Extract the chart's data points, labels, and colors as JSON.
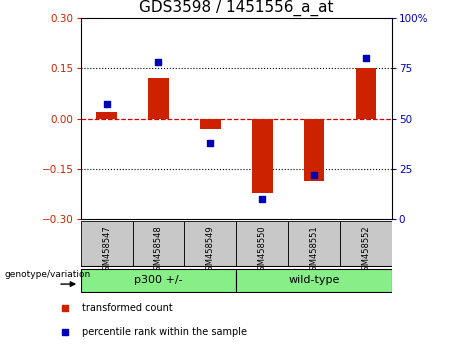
{
  "title": "GDS3598 / 1451556_a_at",
  "samples": [
    "GSM458547",
    "GSM458548",
    "GSM458549",
    "GSM458550",
    "GSM458551",
    "GSM458552"
  ],
  "bar_values": [
    0.02,
    0.12,
    -0.03,
    -0.22,
    -0.185,
    0.15
  ],
  "dot_values": [
    57,
    78,
    38,
    10,
    22,
    80
  ],
  "bar_color": "#CC2200",
  "dot_color": "#0000BB",
  "ylim_left": [
    -0.3,
    0.3
  ],
  "ylim_right": [
    0,
    100
  ],
  "yticks_left": [
    -0.3,
    -0.15,
    0,
    0.15,
    0.3
  ],
  "yticks_right": [
    0,
    25,
    50,
    75,
    100
  ],
  "zero_line_color": "#CC0000",
  "hline_color": "#000000",
  "bg_color": "#FFFFFF",
  "plot_bg_color": "#FFFFFF",
  "legend_items": [
    {
      "label": "transformed count",
      "color": "#CC2200"
    },
    {
      "label": "percentile rank within the sample",
      "color": "#0000BB"
    }
  ],
  "genotype_label": "genotype/variation",
  "group_labels": [
    "p300 +/-",
    "wild-type"
  ],
  "group_colors": [
    "#88EE88",
    "#88EE88"
  ],
  "group_boundary": 3,
  "tick_color_left": "#CC2200",
  "tick_color_right": "#0000BB",
  "title_fontsize": 11,
  "axis_fontsize": 7.5,
  "bar_width": 0.4
}
